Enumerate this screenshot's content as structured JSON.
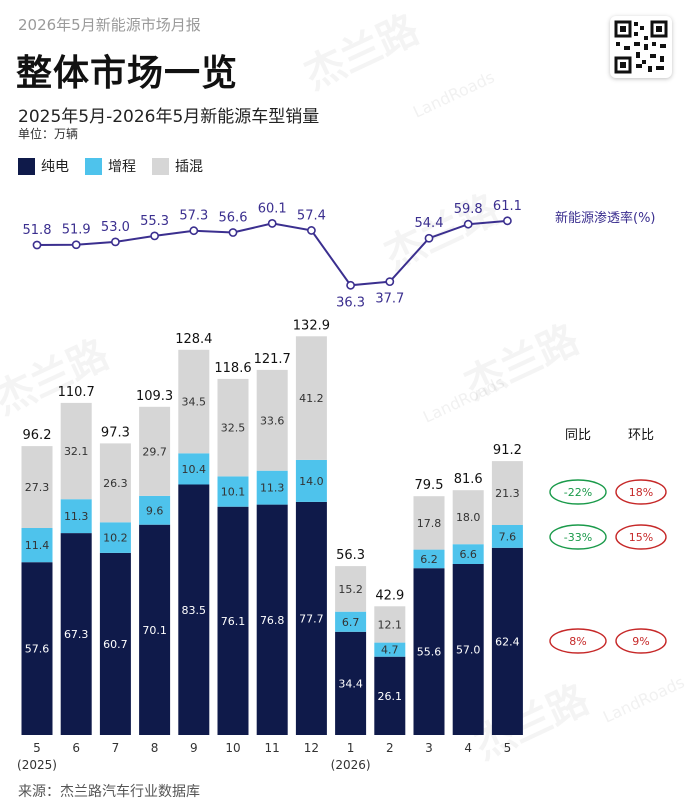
{
  "header": {
    "report": "2026年5月新能源市场月报",
    "title": "整体市场一览",
    "subtitle": "2025年5月-2026年5月新能源车型销量",
    "unit": "单位：万辆"
  },
  "legend": [
    {
      "label": "纯电",
      "color": "#0f1a4a"
    },
    {
      "label": "增程",
      "color": "#4ec3ec"
    },
    {
      "label": "插混",
      "color": "#d6d6d6"
    }
  ],
  "watermark": {
    "brand": "杰兰路",
    "latin": "LandRoads"
  },
  "qr": {
    "icon": "qr-code-icon"
  },
  "chart_data": {
    "type": "bar",
    "stacked": true,
    "categories": [
      "5",
      "6",
      "7",
      "8",
      "9",
      "10",
      "11",
      "12",
      "1",
      "2",
      "3",
      "4",
      "5"
    ],
    "year_labels": [
      {
        "index": 0,
        "text": "(2025)"
      },
      {
        "index": 8,
        "text": "(2026)"
      }
    ],
    "series": [
      {
        "name": "纯电",
        "color": "#0f1a4a",
        "values": [
          57.6,
          67.3,
          60.7,
          70.1,
          83.5,
          76.1,
          76.8,
          77.7,
          34.4,
          26.1,
          55.6,
          57.0,
          62.4
        ]
      },
      {
        "name": "增程",
        "color": "#4ec3ec",
        "values": [
          11.4,
          11.3,
          10.2,
          9.6,
          10.4,
          10.1,
          11.3,
          14.0,
          6.7,
          4.7,
          6.2,
          6.6,
          7.6
        ]
      },
      {
        "name": "插混",
        "color": "#d6d6d6",
        "values": [
          27.3,
          32.1,
          26.3,
          29.7,
          34.5,
          32.5,
          33.6,
          41.2,
          15.2,
          12.1,
          17.8,
          18.0,
          21.3
        ]
      }
    ],
    "totals": [
      96.2,
      110.7,
      97.3,
      109.3,
      128.4,
      118.6,
      121.7,
      132.9,
      56.3,
      42.9,
      79.5,
      81.6,
      91.2
    ],
    "penetration": {
      "name": "新能源渗透率(%)",
      "color": "#3b2f8f",
      "values": [
        51.8,
        51.9,
        53.0,
        55.3,
        57.3,
        56.6,
        60.1,
        57.4,
        36.3,
        37.7,
        54.4,
        59.8,
        61.1
      ]
    },
    "comparison": {
      "headers": [
        "同比",
        "环比"
      ],
      "rows": [
        {
          "series": "插混",
          "yoy": "-22%",
          "mom": "18%",
          "yoy_color": "#1a9a4a",
          "mom_color": "#c62828"
        },
        {
          "series": "增程",
          "yoy": "-33%",
          "mom": "15%",
          "yoy_color": "#1a9a4a",
          "mom_color": "#c62828"
        },
        {
          "series": "纯电",
          "yoy": "8%",
          "mom": "9%",
          "yoy_color": "#c62828",
          "mom_color": "#c62828"
        }
      ]
    },
    "source": "来源：杰兰路汽车行业数据库"
  }
}
